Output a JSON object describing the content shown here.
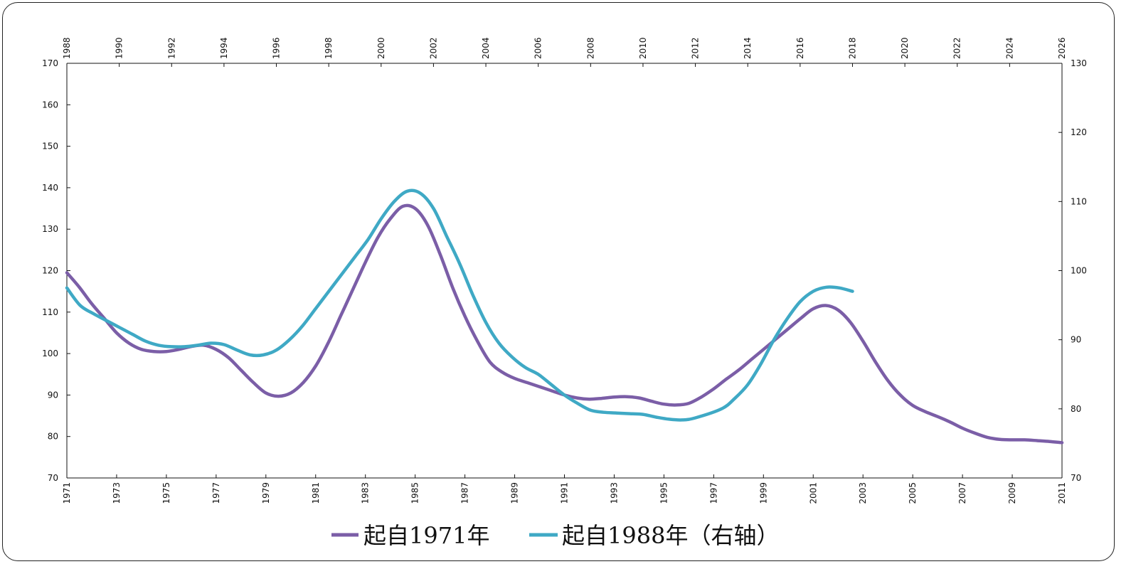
{
  "chart_data": {
    "type": "line",
    "title": "",
    "xlabel": "",
    "ylabel": "",
    "grid": false,
    "legend_position": "bottom-center",
    "x_bottom": {
      "range": [
        1971,
        2011
      ],
      "tick_labels": [
        "1971",
        "1973",
        "1975",
        "1977",
        "1979",
        "1981",
        "1983",
        "1985",
        "1987",
        "1989",
        "1991",
        "1993",
        "1995",
        "1997",
        "1999",
        "2001",
        "2003",
        "2005",
        "2007",
        "2009",
        "2011"
      ]
    },
    "x_top": {
      "range": [
        1988,
        2026
      ],
      "tick_labels": [
        "1988",
        "1990",
        "1992",
        "1994",
        "1996",
        "1998",
        "2000",
        "2002",
        "2004",
        "2006",
        "2008",
        "2010",
        "2012",
        "2014",
        "2016",
        "2018",
        "2020",
        "2022",
        "2024",
        "2026"
      ]
    },
    "y_left": {
      "range": [
        70,
        170
      ],
      "tick_labels": [
        "70",
        "80",
        "90",
        "100",
        "110",
        "120",
        "130",
        "140",
        "150",
        "160",
        "170"
      ]
    },
    "y_right": {
      "range": [
        70,
        130
      ],
      "tick_labels": [
        "70",
        "80",
        "90",
        "100",
        "110",
        "120",
        "130"
      ]
    },
    "series": [
      {
        "name": "起自1971年",
        "color": "#7b5ea7",
        "x_axis": "bottom",
        "y_axis": "left",
        "points": [
          [
            1971,
            119.5
          ],
          [
            1971.5,
            116
          ],
          [
            1972,
            112
          ],
          [
            1972.5,
            108.5
          ],
          [
            1973,
            105
          ],
          [
            1973.5,
            102.5
          ],
          [
            1974,
            101
          ],
          [
            1974.5,
            100.5
          ],
          [
            1975,
            100.5
          ],
          [
            1975.5,
            101
          ],
          [
            1976,
            101.7
          ],
          [
            1976.5,
            102
          ],
          [
            1977,
            101
          ],
          [
            1977.5,
            99
          ],
          [
            1978,
            96
          ],
          [
            1978.5,
            93
          ],
          [
            1979,
            90.5
          ],
          [
            1979.5,
            89.7
          ],
          [
            1980,
            90.5
          ],
          [
            1980.5,
            93
          ],
          [
            1981,
            97
          ],
          [
            1981.5,
            102.5
          ],
          [
            1982,
            109
          ],
          [
            1982.5,
            115.5
          ],
          [
            1983,
            122
          ],
          [
            1983.5,
            128
          ],
          [
            1984,
            132.5
          ],
          [
            1984.5,
            135.5
          ],
          [
            1985,
            135
          ],
          [
            1985.5,
            131
          ],
          [
            1986,
            124
          ],
          [
            1986.5,
            116
          ],
          [
            1987,
            109
          ],
          [
            1987.5,
            103
          ],
          [
            1988,
            98
          ],
          [
            1988.5,
            95.5
          ],
          [
            1989,
            94
          ],
          [
            1989.5,
            93
          ],
          [
            1990,
            92
          ],
          [
            1990.5,
            91
          ],
          [
            1991,
            90
          ],
          [
            1991.5,
            89.3
          ],
          [
            1992,
            89
          ],
          [
            1992.5,
            89.2
          ],
          [
            1993,
            89.5
          ],
          [
            1993.5,
            89.6
          ],
          [
            1994,
            89.3
          ],
          [
            1994.5,
            88.5
          ],
          [
            1995,
            87.8
          ],
          [
            1995.5,
            87.6
          ],
          [
            1996,
            88
          ],
          [
            1996.5,
            89.5
          ],
          [
            1997,
            91.5
          ],
          [
            1997.5,
            93.8
          ],
          [
            1998,
            96
          ],
          [
            1998.5,
            98.5
          ],
          [
            1999,
            101
          ],
          [
            1999.5,
            103.5
          ],
          [
            2000,
            106
          ],
          [
            2000.5,
            108.5
          ],
          [
            2001,
            110.8
          ],
          [
            2001.5,
            111.6
          ],
          [
            2002,
            110.5
          ],
          [
            2002.5,
            107.5
          ],
          [
            2003,
            103
          ],
          [
            2003.5,
            98
          ],
          [
            2004,
            93.5
          ],
          [
            2004.5,
            90
          ],
          [
            2005,
            87.5
          ],
          [
            2005.5,
            86
          ],
          [
            2006,
            84.8
          ],
          [
            2006.5,
            83.5
          ],
          [
            2007,
            82
          ],
          [
            2007.5,
            80.8
          ],
          [
            2008,
            79.8
          ],
          [
            2008.5,
            79.3
          ],
          [
            2009,
            79.2
          ],
          [
            2009.5,
            79.2
          ],
          [
            2010,
            79
          ],
          [
            2010.5,
            78.8
          ],
          [
            2011,
            78.5
          ]
        ]
      },
      {
        "name": "起自1988年（右轴）",
        "color": "#3fa9c5",
        "x_axis": "top",
        "y_axis": "right",
        "points": [
          [
            1988,
            97.5
          ],
          [
            1988.5,
            95
          ],
          [
            1989,
            93.8
          ],
          [
            1989.5,
            92.8
          ],
          [
            1990,
            91.8
          ],
          [
            1990.5,
            90.8
          ],
          [
            1991,
            89.8
          ],
          [
            1991.5,
            89.2
          ],
          [
            1992,
            89
          ],
          [
            1992.5,
            89
          ],
          [
            1993,
            89.2
          ],
          [
            1993.5,
            89.5
          ],
          [
            1994,
            89.3
          ],
          [
            1994.5,
            88.5
          ],
          [
            1995,
            87.8
          ],
          [
            1995.5,
            87.8
          ],
          [
            1996,
            88.5
          ],
          [
            1996.5,
            90
          ],
          [
            1997,
            92
          ],
          [
            1997.5,
            94.5
          ],
          [
            1998,
            97
          ],
          [
            1998.5,
            99.5
          ],
          [
            1999,
            102
          ],
          [
            1999.5,
            104.5
          ],
          [
            2000,
            107.5
          ],
          [
            2000.5,
            110
          ],
          [
            2001,
            111.5
          ],
          [
            2001.5,
            111.2
          ],
          [
            2002,
            109
          ],
          [
            2002.5,
            105
          ],
          [
            2003,
            101
          ],
          [
            2003.5,
            96.5
          ],
          [
            2004,
            92.5
          ],
          [
            2004.5,
            89.5
          ],
          [
            2005,
            87.5
          ],
          [
            2005.5,
            86
          ],
          [
            2006,
            85
          ],
          [
            2006.5,
            83.5
          ],
          [
            2007,
            82
          ],
          [
            2007.5,
            80.8
          ],
          [
            2008,
            79.8
          ],
          [
            2008.5,
            79.5
          ],
          [
            2009,
            79.4
          ],
          [
            2009.5,
            79.3
          ],
          [
            2010,
            79.2
          ],
          [
            2010.5,
            78.8
          ],
          [
            2011,
            78.5
          ],
          [
            2011.5,
            78.4
          ],
          [
            2012,
            78.7
          ],
          [
            2013,
            80
          ],
          [
            2013.5,
            81.5
          ],
          [
            2014,
            83.5
          ],
          [
            2014.5,
            86.5
          ],
          [
            2015,
            90
          ],
          [
            2015.5,
            93
          ],
          [
            2016,
            95.5
          ],
          [
            2016.5,
            97
          ],
          [
            2017,
            97.6
          ],
          [
            2017.5,
            97.5
          ],
          [
            2018,
            97
          ]
        ]
      }
    ],
    "legend": [
      {
        "label": "起自1971年",
        "color": "#7b5ea7"
      },
      {
        "label": "起自1988年（右轴）",
        "color": "#3fa9c5"
      }
    ]
  }
}
